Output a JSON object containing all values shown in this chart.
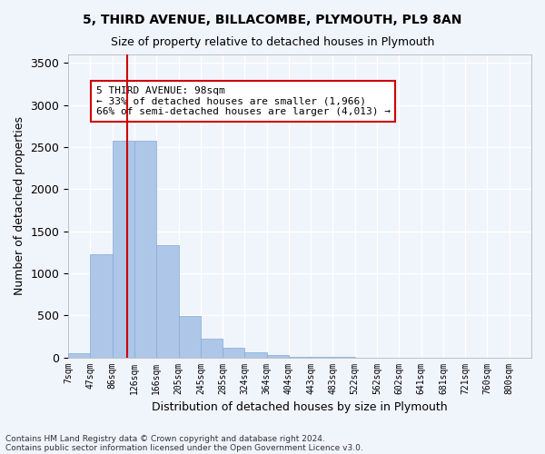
{
  "title1": "5, THIRD AVENUE, BILLACOMBE, PLYMOUTH, PL9 8AN",
  "title2": "Size of property relative to detached houses in Plymouth",
  "xlabel": "Distribution of detached houses by size in Plymouth",
  "ylabel": "Number of detached properties",
  "bin_labels": [
    "7sqm",
    "47sqm",
    "86sqm",
    "126sqm",
    "166sqm",
    "205sqm",
    "245sqm",
    "285sqm",
    "324sqm",
    "364sqm",
    "404sqm",
    "443sqm",
    "483sqm",
    "522sqm",
    "562sqm",
    "602sqm",
    "641sqm",
    "681sqm",
    "721sqm",
    "760sqm",
    "800sqm"
  ],
  "bar_values": [
    50,
    1230,
    2580,
    2575,
    1330,
    490,
    220,
    115,
    55,
    30,
    10,
    5,
    2,
    0,
    0,
    0,
    0,
    0,
    0,
    0
  ],
  "bar_color": "#aec6e8",
  "bar_edgecolor": "#7eadd4",
  "property_line_bin_index": 2.67,
  "annotation_text": "5 THIRD AVENUE: 98sqm\n← 33% of detached houses are smaller (1,966)\n66% of semi-detached houses are larger (4,013) →",
  "annotation_box_color": "#ffffff",
  "annotation_box_edgecolor": "#cc0000",
  "ylim": [
    0,
    3600
  ],
  "yticks": [
    0,
    500,
    1000,
    1500,
    2000,
    2500,
    3000,
    3500
  ],
  "background_color": "#f0f4fb",
  "grid_color": "#ffffff",
  "footer1": "Contains HM Land Registry data © Crown copyright and database right 2024.",
  "footer2": "Contains public sector information licensed under the Open Government Licence v3.0."
}
